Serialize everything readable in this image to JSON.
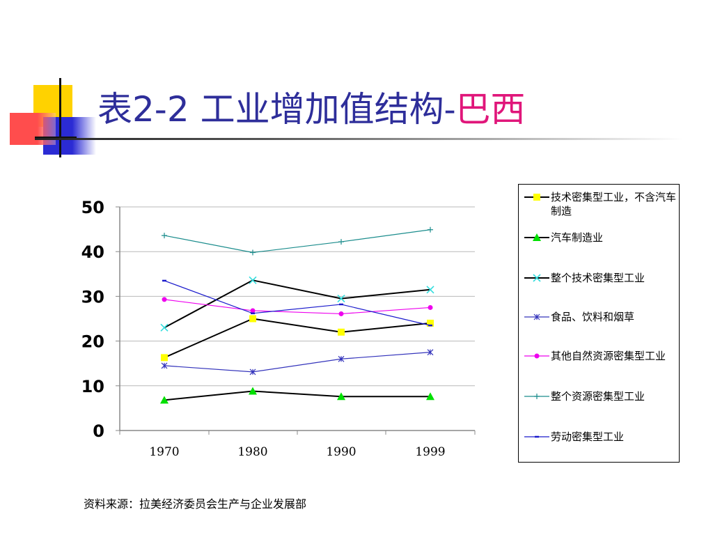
{
  "slide": {
    "title_prefix": "表",
    "title_number": "2-2",
    "title_main": " 工业增加值结构-",
    "title_country": "巴西",
    "source": "资料来源：拉美经济委员会生产与企业发展部"
  },
  "colors": {
    "title": "#2e2e9a",
    "title_accent": "#e0167a",
    "deco_yellow": "#ffd200",
    "deco_blue": "#2b2bd4",
    "deco_red": "#ff4d4d"
  },
  "chart_data": {
    "type": "line",
    "categories": [
      "1970",
      "1980",
      "1990",
      "1999"
    ],
    "ylim": [
      0,
      50
    ],
    "yticks": [
      "0",
      "10",
      "20",
      "30",
      "40",
      "50"
    ],
    "grid": true,
    "legend_position": "right",
    "series": [
      {
        "name": "技术密集型工业，不含汽车制造",
        "values": [
          16.3,
          25.0,
          22.0,
          24.0
        ],
        "color": "#000000",
        "marker": "square",
        "marker_color": "#ffff00"
      },
      {
        "name": "汽车制造业",
        "values": [
          6.8,
          8.8,
          7.6,
          7.6
        ],
        "color": "#000000",
        "marker": "triangle",
        "marker_color": "#00e000"
      },
      {
        "name": "整个技术密集型工业",
        "values": [
          23.0,
          33.6,
          29.5,
          31.5
        ],
        "color": "#000000",
        "marker": "x",
        "marker_color": "#33dddd"
      },
      {
        "name": "食品、饮料和烟草",
        "values": [
          14.5,
          13.1,
          16.0,
          17.5
        ],
        "color": "#3333bb",
        "marker": "star",
        "marker_color": "#3333bb"
      },
      {
        "name": "其他自然资源密集型工业",
        "values": [
          29.3,
          26.8,
          26.1,
          27.5
        ],
        "color": "#ee00ee",
        "marker": "circle",
        "marker_color": "#ee00ee"
      },
      {
        "name": "整个资源密集型工业",
        "values": [
          43.6,
          39.8,
          42.2,
          44.9
        ],
        "color": "#1a8c8c",
        "marker": "plus",
        "marker_color": "#1a8c8c"
      },
      {
        "name": "劳动密集型工业",
        "values": [
          33.5,
          26.2,
          28.2,
          23.5
        ],
        "color": "#1a1acc",
        "marker": "dash",
        "marker_color": "#1a1acc"
      }
    ]
  }
}
